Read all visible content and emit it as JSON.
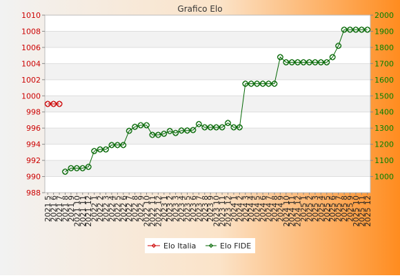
{
  "colors": {
    "background_start": "#f2f2f2",
    "background_end": "#ff8c1f",
    "plot_band": "#f2f2f2",
    "plot_bg": "#ffffff",
    "italia": "#cc0000",
    "fide": "#006600",
    "left_tick": "#cc0000",
    "right_tick": "#008000"
  },
  "chart_data": {
    "type": "line",
    "title": "Grafico Elo",
    "grid": true,
    "legend_position": "bottom-center",
    "left_axis": {
      "range": [
        988,
        1010
      ],
      "ticks": [
        988,
        990,
        992,
        994,
        996,
        998,
        1000,
        1002,
        1004,
        1006,
        1008,
        1010
      ]
    },
    "right_axis": {
      "range": [
        900,
        2000
      ],
      "ticks": [
        1000,
        1100,
        1200,
        1300,
        1400,
        1500,
        1600,
        1700,
        1800,
        1900,
        2000
      ]
    },
    "categories": [
      "2021 5",
      "2021 6",
      "2021 7",
      "2021 8",
      "2021 9",
      "2021 10",
      "2021 11",
      "2021 12",
      "2022 1",
      "2022 2",
      "2022 3",
      "2022 4",
      "2022 5",
      "2022 6",
      "2022 7",
      "2022 8",
      "2022 9",
      "2022 10",
      "2022 11",
      "2022 12",
      "2023 1",
      "2023 2",
      "2023 3",
      "2023 4",
      "2023 5",
      "2023 6",
      "2023 7",
      "2023 8",
      "2023 9",
      "2023 10",
      "2023 11",
      "2023 12",
      "2024 1",
      "2024 2",
      "2024 3",
      "2024 4",
      "2024 5",
      "2024 6",
      "2024 7",
      "2024 8",
      "2024 9",
      "2024 10",
      "2024 11",
      "2024 12",
      "2025 1",
      "2025 2",
      "2025 3",
      "2025 4",
      "2025 5",
      "2025 6",
      "2025 7",
      "2025 8",
      "2025 9",
      "2025 10",
      "2025 11",
      "2025 12"
    ],
    "series": [
      {
        "name": "Elo Italia",
        "axis": "left",
        "values": [
          999,
          999,
          999,
          null,
          null,
          null,
          null,
          null,
          null,
          null,
          null,
          null,
          null,
          null,
          null,
          null,
          null,
          null,
          null,
          null,
          null,
          null,
          null,
          null,
          null,
          null,
          null,
          null,
          null,
          null,
          null,
          null,
          null,
          null,
          null,
          null,
          null,
          null,
          null,
          null,
          null,
          null,
          null,
          null,
          null,
          null,
          null,
          null,
          null,
          null,
          null,
          null,
          null,
          null,
          null,
          null
        ]
      },
      {
        "name": "Elo FIDE",
        "axis": "right",
        "values": [
          null,
          null,
          null,
          1030,
          1052,
          1052,
          1052,
          1060,
          1158,
          1168,
          1168,
          1195,
          1195,
          1195,
          1283,
          1308,
          1318,
          1318,
          1258,
          1258,
          1265,
          1282,
          1270,
          1285,
          1285,
          1288,
          1325,
          1305,
          1305,
          1305,
          1305,
          1332,
          1305,
          1305,
          1575,
          1575,
          1575,
          1575,
          1575,
          1575,
          1740,
          1708,
          1708,
          1708,
          1708,
          1708,
          1708,
          1708,
          1708,
          1740,
          1810,
          1910,
          1910,
          1910,
          1910,
          1910
        ]
      }
    ]
  }
}
